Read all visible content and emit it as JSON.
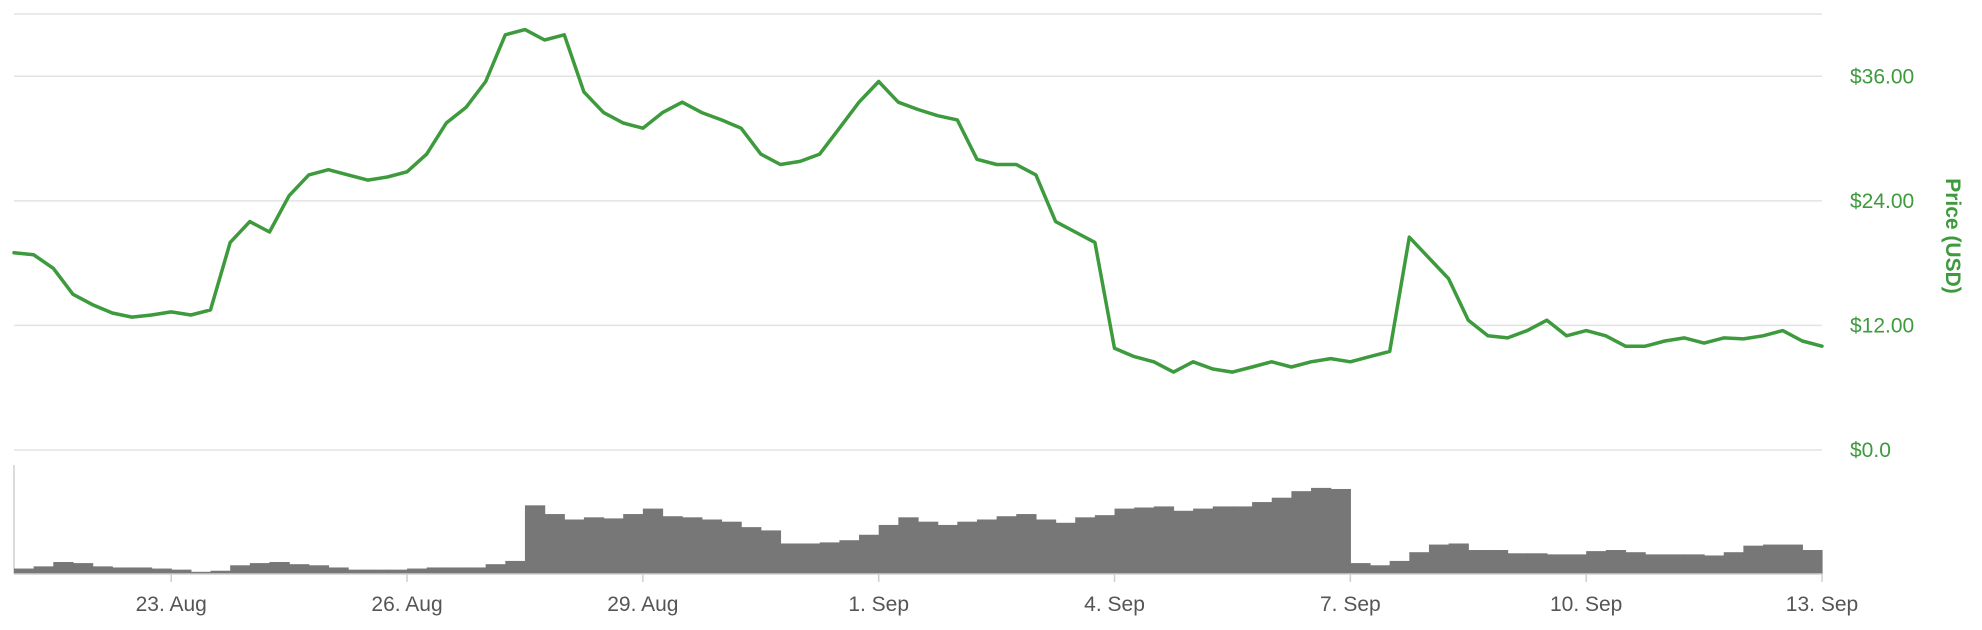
{
  "chart_data": [
    {
      "type": "line",
      "ylabel": "Price (USD)",
      "ylim": [
        0,
        42
      ],
      "yticks": [
        0,
        12,
        24,
        36
      ],
      "ytick_labels": [
        "$0.0",
        "$12.00",
        "$24.00",
        "$36.00"
      ],
      "xlim": [
        "2018-08-21",
        "2018-09-13"
      ],
      "xticks": [
        "2018-08-23",
        "2018-08-26",
        "2018-08-29",
        "2018-09-01",
        "2018-09-04",
        "2018-09-07",
        "2018-09-10",
        "2018-09-13"
      ],
      "xtick_labels": [
        "23. Aug",
        "26. Aug",
        "29. Aug",
        "1. Sep",
        "4. Sep",
        "7. Sep",
        "10. Sep",
        "13. Sep"
      ],
      "grid": true,
      "legend": "none",
      "color": "#3d9a3d",
      "series": [
        {
          "x": [
            "2018-08-21T00:00",
            "2018-08-21T06:00",
            "2018-08-21T12:00",
            "2018-08-21T18:00",
            "2018-08-22T00:00",
            "2018-08-22T06:00",
            "2018-08-22T12:00",
            "2018-08-22T18:00",
            "2018-08-23T00:00",
            "2018-08-23T06:00",
            "2018-08-23T12:00",
            "2018-08-23T18:00",
            "2018-08-24T00:00",
            "2018-08-24T06:00",
            "2018-08-24T12:00",
            "2018-08-24T18:00",
            "2018-08-25T00:00",
            "2018-08-25T06:00",
            "2018-08-25T12:00",
            "2018-08-25T18:00",
            "2018-08-26T00:00",
            "2018-08-26T06:00",
            "2018-08-26T12:00",
            "2018-08-26T18:00",
            "2018-08-27T00:00",
            "2018-08-27T06:00",
            "2018-08-27T12:00",
            "2018-08-27T18:00",
            "2018-08-28T00:00",
            "2018-08-28T06:00",
            "2018-08-28T12:00",
            "2018-08-28T18:00",
            "2018-08-29T00:00",
            "2018-08-29T06:00",
            "2018-08-29T12:00",
            "2018-08-29T18:00",
            "2018-08-30T00:00",
            "2018-08-30T06:00",
            "2018-08-30T12:00",
            "2018-08-30T18:00",
            "2018-08-31T00:00",
            "2018-08-31T06:00",
            "2018-08-31T12:00",
            "2018-08-31T18:00",
            "2018-09-01T00:00",
            "2018-09-01T06:00",
            "2018-09-01T12:00",
            "2018-09-01T18:00",
            "2018-09-02T00:00",
            "2018-09-02T06:00",
            "2018-09-02T12:00",
            "2018-09-02T18:00",
            "2018-09-03T00:00",
            "2018-09-03T06:00",
            "2018-09-03T12:00",
            "2018-09-03T18:00",
            "2018-09-04T00:00",
            "2018-09-04T06:00",
            "2018-09-04T12:00",
            "2018-09-04T18:00",
            "2018-09-05T00:00",
            "2018-09-05T06:00",
            "2018-09-05T12:00",
            "2018-09-05T18:00",
            "2018-09-06T00:00",
            "2018-09-06T06:00",
            "2018-09-06T12:00",
            "2018-09-06T18:00",
            "2018-09-07T00:00",
            "2018-09-07T06:00",
            "2018-09-07T12:00",
            "2018-09-07T18:00",
            "2018-09-08T00:00",
            "2018-09-08T06:00",
            "2018-09-08T12:00",
            "2018-09-08T18:00",
            "2018-09-09T00:00",
            "2018-09-09T06:00",
            "2018-09-09T12:00",
            "2018-09-09T18:00",
            "2018-09-10T00:00",
            "2018-09-10T06:00",
            "2018-09-10T12:00",
            "2018-09-10T18:00",
            "2018-09-11T00:00",
            "2018-09-11T06:00",
            "2018-09-11T12:00",
            "2018-09-11T18:00",
            "2018-09-12T00:00",
            "2018-09-12T06:00",
            "2018-09-12T12:00",
            "2018-09-12T18:00",
            "2018-09-13T00:00"
          ],
          "values": [
            19.0,
            18.8,
            17.5,
            15.0,
            14.0,
            13.2,
            12.8,
            13.0,
            13.3,
            13.0,
            13.5,
            20.0,
            22.0,
            21.0,
            24.5,
            26.5,
            27.0,
            26.5,
            26.0,
            26.3,
            26.8,
            28.5,
            31.5,
            33.0,
            35.5,
            40.0,
            40.5,
            39.5,
            40.0,
            34.5,
            32.5,
            31.5,
            31.0,
            32.5,
            33.5,
            32.5,
            31.8,
            31.0,
            28.5,
            27.5,
            27.8,
            28.5,
            31.0,
            33.5,
            35.5,
            33.5,
            32.8,
            32.2,
            31.8,
            28.0,
            27.5,
            27.5,
            26.5,
            22.0,
            21.0,
            20.0,
            9.8,
            9.0,
            8.5,
            7.5,
            8.5,
            7.8,
            7.5,
            8.0,
            8.5,
            8.0,
            8.5,
            8.8,
            8.5,
            9.0,
            9.5,
            20.5,
            18.5,
            16.5,
            12.5,
            11.0,
            10.8,
            11.5,
            12.5,
            11.0,
            11.5,
            11.0,
            10.0,
            10.0,
            10.5,
            10.8,
            10.3,
            10.8,
            10.7,
            11.0,
            11.5,
            10.5,
            10.0
          ]
        }
      ]
    },
    {
      "type": "bar",
      "x": [
        "2018-08-21T00:00",
        "2018-08-21T06:00",
        "2018-08-21T12:00",
        "2018-08-21T18:00",
        "2018-08-22T00:00",
        "2018-08-22T06:00",
        "2018-08-22T12:00",
        "2018-08-22T18:00",
        "2018-08-23T00:00",
        "2018-08-23T06:00",
        "2018-08-23T12:00",
        "2018-08-23T18:00",
        "2018-08-24T00:00",
        "2018-08-24T06:00",
        "2018-08-24T12:00",
        "2018-08-24T18:00",
        "2018-08-25T00:00",
        "2018-08-25T06:00",
        "2018-08-25T12:00",
        "2018-08-25T18:00",
        "2018-08-26T00:00",
        "2018-08-26T06:00",
        "2018-08-26T12:00",
        "2018-08-26T18:00",
        "2018-08-27T00:00",
        "2018-08-27T06:00",
        "2018-08-27T12:00",
        "2018-08-27T18:00",
        "2018-08-28T00:00",
        "2018-08-28T06:00",
        "2018-08-28T12:00",
        "2018-08-28T18:00",
        "2018-08-29T00:00",
        "2018-08-29T06:00",
        "2018-08-29T12:00",
        "2018-08-29T18:00",
        "2018-08-30T00:00",
        "2018-08-30T06:00",
        "2018-08-30T12:00",
        "2018-08-30T18:00",
        "2018-08-31T00:00",
        "2018-08-31T06:00",
        "2018-08-31T12:00",
        "2018-08-31T18:00",
        "2018-09-01T00:00",
        "2018-09-01T06:00",
        "2018-09-01T12:00",
        "2018-09-01T18:00",
        "2018-09-02T00:00",
        "2018-09-02T06:00",
        "2018-09-02T12:00",
        "2018-09-02T18:00",
        "2018-09-03T00:00",
        "2018-09-03T06:00",
        "2018-09-03T12:00",
        "2018-09-03T18:00",
        "2018-09-04T00:00",
        "2018-09-04T06:00",
        "2018-09-04T12:00",
        "2018-09-04T18:00",
        "2018-09-05T00:00",
        "2018-09-05T06:00",
        "2018-09-05T12:00",
        "2018-09-05T18:00",
        "2018-09-06T00:00",
        "2018-09-06T06:00",
        "2018-09-06T12:00",
        "2018-09-06T18:00",
        "2018-09-07T00:00",
        "2018-09-07T06:00",
        "2018-09-07T12:00",
        "2018-09-07T18:00",
        "2018-09-08T00:00",
        "2018-09-08T06:00",
        "2018-09-08T12:00",
        "2018-09-08T18:00",
        "2018-09-09T00:00",
        "2018-09-09T06:00",
        "2018-09-09T12:00",
        "2018-09-09T18:00",
        "2018-09-10T00:00",
        "2018-09-10T06:00",
        "2018-09-10T12:00",
        "2018-09-10T18:00",
        "2018-09-11T00:00",
        "2018-09-11T06:00",
        "2018-09-11T12:00",
        "2018-09-11T18:00",
        "2018-09-12T00:00",
        "2018-09-12T06:00",
        "2018-09-12T12:00",
        "2018-09-12T18:00"
      ],
      "values": [
        0.05,
        0.07,
        0.11,
        0.1,
        0.07,
        0.06,
        0.06,
        0.05,
        0.04,
        0.02,
        0.03,
        0.08,
        0.1,
        0.11,
        0.09,
        0.08,
        0.06,
        0.04,
        0.04,
        0.04,
        0.05,
        0.06,
        0.06,
        0.06,
        0.09,
        0.12,
        0.63,
        0.55,
        0.5,
        0.52,
        0.51,
        0.55,
        0.6,
        0.53,
        0.52,
        0.5,
        0.48,
        0.43,
        0.4,
        0.28,
        0.28,
        0.29,
        0.31,
        0.36,
        0.45,
        0.52,
        0.48,
        0.45,
        0.48,
        0.5,
        0.53,
        0.55,
        0.5,
        0.47,
        0.52,
        0.54,
        0.6,
        0.61,
        0.62,
        0.58,
        0.6,
        0.62,
        0.62,
        0.66,
        0.7,
        0.76,
        0.79,
        0.78,
        0.1,
        0.08,
        0.12,
        0.2,
        0.27,
        0.28,
        0.22,
        0.22,
        0.19,
        0.19,
        0.18,
        0.18,
        0.21,
        0.22,
        0.2,
        0.18,
        0.18,
        0.18,
        0.17,
        0.2,
        0.26,
        0.27,
        0.27,
        0.22
      ],
      "color": "#777777"
    }
  ]
}
